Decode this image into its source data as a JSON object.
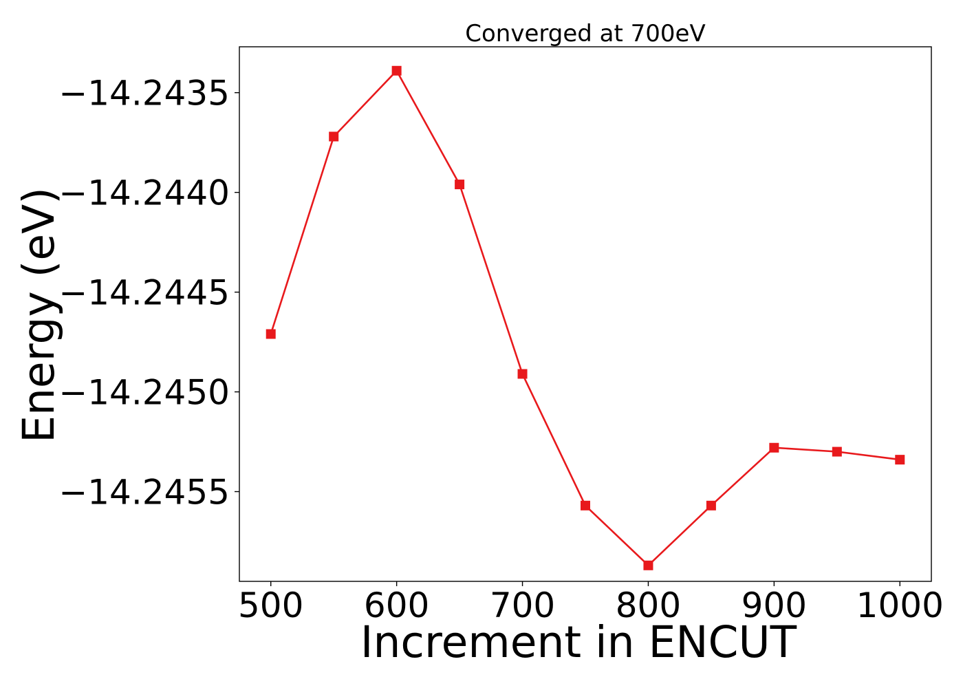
{
  "chart_data": {
    "type": "line",
    "title": "Converged at 700eV",
    "xlabel": "Increment in ENCUT",
    "ylabel": "Energy (eV)",
    "x": [
      500,
      550,
      600,
      650,
      700,
      750,
      800,
      850,
      900,
      950,
      1000
    ],
    "series": [
      {
        "values": [
          -14.24471,
          -14.24372,
          -14.24339,
          -14.24396,
          -14.24491,
          -14.24557,
          -14.24587,
          -14.24557,
          -14.24528,
          -14.2453,
          -14.24534
        ],
        "color": "#e8191c",
        "marker": "square"
      }
    ],
    "xticks": [
      500,
      600,
      700,
      800,
      900,
      1000
    ],
    "xtick_labels": [
      "500",
      "600",
      "700",
      "800",
      "900",
      "1000"
    ],
    "yticks": [
      -14.2435,
      -14.244,
      -14.2445,
      -14.245,
      -14.2455
    ],
    "ytick_labels": [
      "−14.2435",
      "−14.2440",
      "−14.2445",
      "−14.2450",
      "−14.2455"
    ],
    "xlim": [
      475,
      1025
    ],
    "ylim": [
      -14.24595,
      -14.24327
    ],
    "grid": false,
    "legend": "none"
  }
}
